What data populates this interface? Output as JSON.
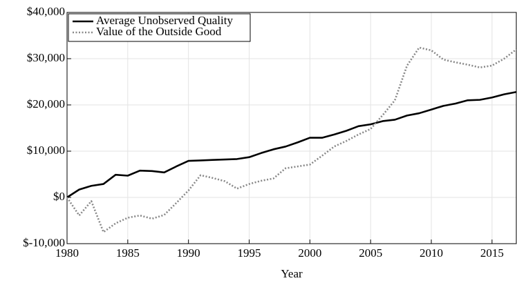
{
  "chart_data": {
    "type": "line",
    "x_label": "Year",
    "x": [
      1980,
      1981,
      1982,
      1983,
      1984,
      1985,
      1986,
      1987,
      1988,
      1989,
      1990,
      1991,
      1992,
      1993,
      1994,
      1995,
      1996,
      1997,
      1998,
      1999,
      2000,
      2001,
      2002,
      2003,
      2004,
      2005,
      2006,
      2007,
      2008,
      2009,
      2010,
      2011,
      2012,
      2013,
      2014,
      2015,
      2016,
      2017
    ],
    "series": [
      {
        "name": "Average Unobserved Quality",
        "color": "#000000",
        "dash": "solid",
        "values": [
          0,
          1700,
          2500,
          2900,
          4900,
          4700,
          5800,
          5700,
          5400,
          6700,
          7900,
          8000,
          8100,
          8200,
          8300,
          8700,
          9600,
          10400,
          11000,
          11900,
          12900,
          12900,
          13600,
          14400,
          15400,
          15800,
          16500,
          16800,
          17700,
          18200,
          19000,
          19800,
          20300,
          21000,
          21100,
          21600,
          22300,
          22800
        ]
      },
      {
        "name": "Value of the Outside Good",
        "color": "#888888",
        "dash": "dotted",
        "values": [
          0,
          -3900,
          -800,
          -7500,
          -5600,
          -4400,
          -3900,
          -4600,
          -3800,
          -1200,
          1500,
          4800,
          4200,
          3500,
          1900,
          2900,
          3600,
          4100,
          6300,
          6700,
          7100,
          9000,
          11000,
          12200,
          13600,
          14800,
          17800,
          21000,
          28500,
          32400,
          31800,
          29800,
          29200,
          28700,
          28100,
          28500,
          30000,
          32000
        ]
      }
    ],
    "xlim": [
      1980,
      2017
    ],
    "xticks": [
      1980,
      1985,
      1990,
      1995,
      2000,
      2005,
      2010,
      2015
    ],
    "ylim": [
      -10000,
      40000
    ],
    "yticks": [
      {
        "value": -10000,
        "label": "$-10,000"
      },
      {
        "value": 0,
        "label": "$0"
      },
      {
        "value": 10000,
        "label": "$10,000"
      },
      {
        "value": 20000,
        "label": "$20,000"
      },
      {
        "value": 30000,
        "label": "$30,000"
      },
      {
        "value": 40000,
        "label": "$40,000"
      }
    ],
    "grid": true,
    "legend": "upper-left"
  }
}
